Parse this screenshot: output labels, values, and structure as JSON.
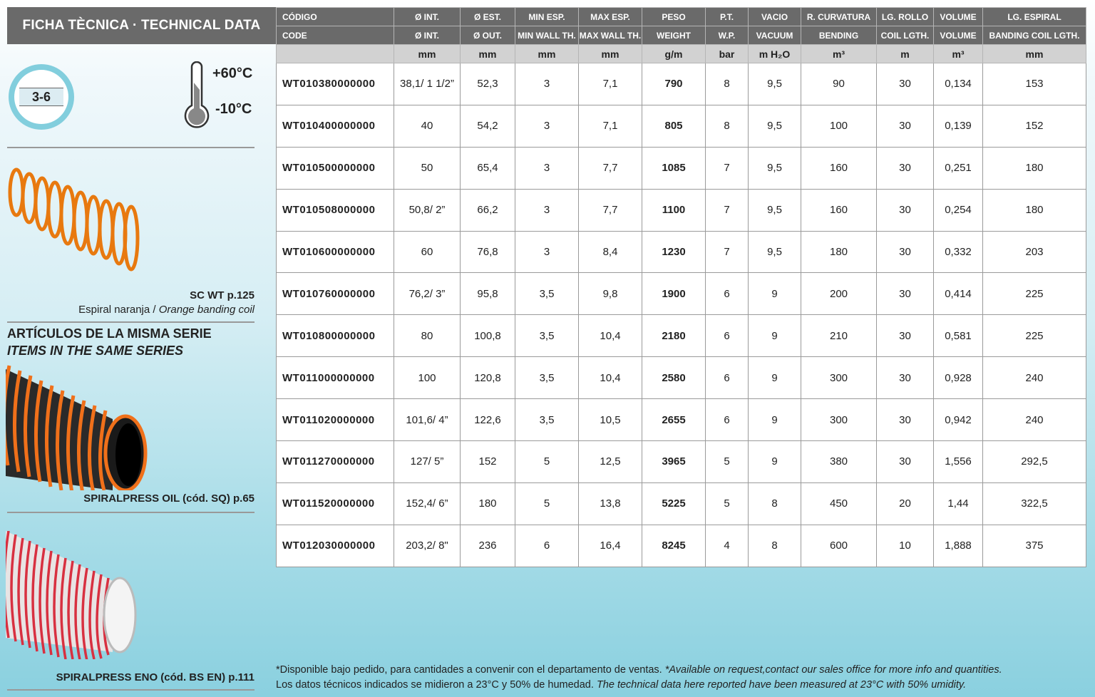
{
  "title": "FICHA TÈCNICA · TECHNICAL DATA",
  "pressure_badge": "3-6",
  "temp_max": "+60°C",
  "temp_min": "-10°C",
  "banding": {
    "ref": "SC WT p.125",
    "desc_es": "Espiral naranja / ",
    "desc_en": "Orange banding coil"
  },
  "series": {
    "title_es": "ARTÍCULOS DE LA MISMA SERIE",
    "title_en": "ITEMS IN THE SAME SERIES",
    "items": [
      {
        "label": "SPIRALPRESS OIL (cód. SQ) p.65"
      },
      {
        "label": "SPIRALPRESS ENO (cód. BS EN) p.111"
      }
    ]
  },
  "table": {
    "header_es": [
      "CÓDIGO",
      "Ø INT.",
      "Ø EST.",
      "MIN ESP.",
      "MAX ESP.",
      "PESO",
      "P.T.",
      "VACIO",
      "R. CURVATURA",
      "LG. ROLLO",
      "VOLUME",
      "LG. ESPIRAL"
    ],
    "header_en": [
      "CODE",
      "Ø INT.",
      "Ø OUT.",
      "MIN WALL TH.",
      "MAX WALL TH.",
      "WEIGHT",
      "W.P.",
      "VACUUM",
      "BENDING",
      "COIL LGTH.",
      "VOLUME",
      "BANDING COIL LGTH."
    ],
    "units": [
      "",
      "mm",
      "mm",
      "mm",
      "mm",
      "g/m",
      "bar",
      "m H₂O",
      "m³",
      "m",
      "m³",
      "mm"
    ],
    "rows": [
      [
        "WT010380000000",
        "38,1/ 1 1/2”",
        "52,3",
        "3",
        "7,1",
        "790",
        "8",
        "9,5",
        "90",
        "30",
        "0,134",
        "153"
      ],
      [
        "WT010400000000",
        "40",
        "54,2",
        "3",
        "7,1",
        "805",
        "8",
        "9,5",
        "100",
        "30",
        "0,139",
        "152"
      ],
      [
        "WT010500000000",
        "50",
        "65,4",
        "3",
        "7,7",
        "1085",
        "7",
        "9,5",
        "160",
        "30",
        "0,251",
        "180"
      ],
      [
        "WT010508000000",
        "50,8/ 2”",
        "66,2",
        "3",
        "7,7",
        "1100",
        "7",
        "9,5",
        "160",
        "30",
        "0,254",
        "180"
      ],
      [
        "WT010600000000",
        "60",
        "76,8",
        "3",
        "8,4",
        "1230",
        "7",
        "9,5",
        "180",
        "30",
        "0,332",
        "203"
      ],
      [
        "WT010760000000",
        "76,2/ 3”",
        "95,8",
        "3,5",
        "9,8",
        "1900",
        "6",
        "9",
        "200",
        "30",
        "0,414",
        "225"
      ],
      [
        "WT010800000000",
        "80",
        "100,8",
        "3,5",
        "10,4",
        "2180",
        "6",
        "9",
        "210",
        "30",
        "0,581",
        "225"
      ],
      [
        "WT011000000000",
        "100",
        "120,8",
        "3,5",
        "10,4",
        "2580",
        "6",
        "9",
        "300",
        "30",
        "0,928",
        "240"
      ],
      [
        "WT011020000000",
        "101,6/ 4”",
        "122,6",
        "3,5",
        "10,5",
        "2655",
        "6",
        "9",
        "300",
        "30",
        "0,942",
        "240"
      ],
      [
        "WT011270000000",
        "127/ 5”",
        "152",
        "5",
        "12,5",
        "3965",
        "5",
        "9",
        "380",
        "30",
        "1,556",
        "292,5"
      ],
      [
        "WT011520000000",
        "152,4/ 6”",
        "180",
        "5",
        "13,8",
        "5225",
        "5",
        "8",
        "450",
        "20",
        "1,44",
        "322,5"
      ],
      [
        "WT012030000000",
        "203,2/ 8\"",
        "236",
        "6",
        "16,4",
        "8245",
        "4",
        "8",
        "600",
        "10",
        "1,888",
        "375"
      ]
    ]
  },
  "footer": {
    "line1_es": "*Disponible bajo pedido, para cantidades a convenir con el departamento de ventas.  ",
    "line1_en": "*Available on request,contact our sales office for more info and quantities.",
    "line2_es": "Los datos técnicos indicados se midieron a 23°C y 50% de humedad. ",
    "line2_en": "The technical data here reported have been measured at 23°C with 50% umidity."
  },
  "colors": {
    "header_bg": "#6a6a6a",
    "units_bg": "#d2d2d2",
    "badge": "#82cedd",
    "orange": "#e8790f",
    "red": "#d83040"
  }
}
